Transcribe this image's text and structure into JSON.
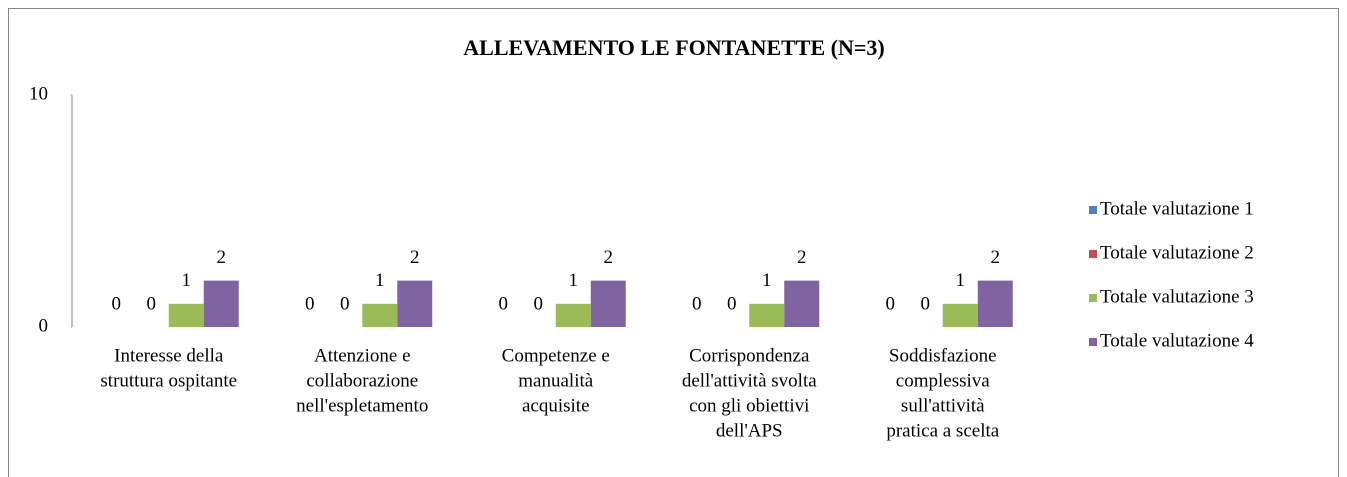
{
  "chart_data": {
    "type": "bar",
    "title": "ALLEVAMENTO LE FONTANETTE (N=3)",
    "categories": [
      [
        "Interesse della",
        "struttura ospitante"
      ],
      [
        "Attenzione e",
        "collaborazione",
        "nell'espletamento"
      ],
      [
        "Competenze e",
        "manualità",
        "acquisite"
      ],
      [
        "Corrispondenza",
        "dell'attività svolta",
        "con gli obiettivi",
        "dell'APS"
      ],
      [
        "Soddisfazione",
        "complessiva",
        "sull'attività",
        "pratica a scelta"
      ]
    ],
    "series": [
      {
        "name": "Totale valutazione 1",
        "color": "#4f81bd",
        "values": [
          0,
          0,
          0,
          0,
          0
        ]
      },
      {
        "name": "Totale valutazione 2",
        "color": "#c0504d",
        "values": [
          0,
          0,
          0,
          0,
          0
        ]
      },
      {
        "name": "Totale valutazione 3",
        "color": "#9bbb59",
        "values": [
          1,
          1,
          1,
          1,
          1
        ]
      },
      {
        "name": "Totale valutazione 4",
        "color": "#8064a2",
        "values": [
          2,
          2,
          2,
          2,
          2
        ]
      }
    ],
    "ylim": [
      0,
      10
    ],
    "yticks": [
      0,
      10
    ],
    "legend": "right"
  }
}
